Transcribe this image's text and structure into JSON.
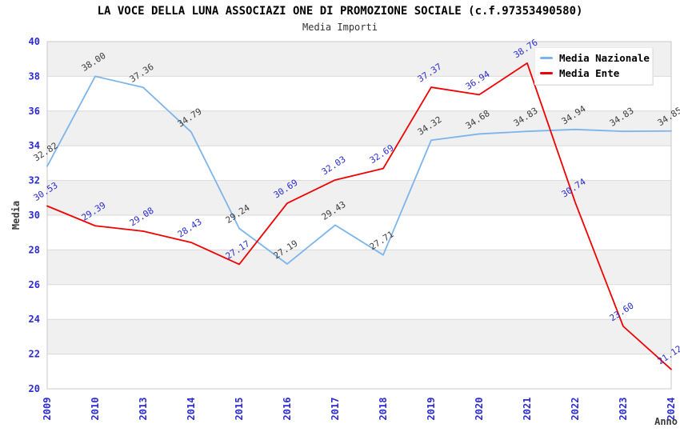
{
  "chart_data": {
    "type": "line",
    "title": "LA VOCE DELLA LUNA ASSOCIAZI ONE DI PROMOZIONE SOCIALE (c.f.97353490580)",
    "subtitle": "Media Importi",
    "xlabel": "Anno",
    "ylabel": "Media",
    "ylim": [
      20,
      40
    ],
    "yticks": [
      40,
      38,
      36,
      34,
      32,
      30,
      28,
      26,
      24,
      22,
      20
    ],
    "categories": [
      "2009",
      "2010",
      "2013",
      "2014",
      "2015",
      "2016",
      "2017",
      "2018",
      "2019",
      "2020",
      "2021",
      "2022",
      "2023",
      "2024"
    ],
    "series": [
      {
        "name": "Media Nazionale",
        "color": "#7cb5ec",
        "label_color": "#3c3c3c",
        "values": [
          32.82,
          38.0,
          37.36,
          34.79,
          29.24,
          27.19,
          29.43,
          27.71,
          34.32,
          34.68,
          34.83,
          34.94,
          34.83,
          34.85
        ]
      },
      {
        "name": "Media Ente",
        "color": "#f00000",
        "label_color": "#2b2bd0",
        "values": [
          30.53,
          29.39,
          29.08,
          28.43,
          27.17,
          30.69,
          32.03,
          32.69,
          37.37,
          36.94,
          38.76,
          30.74,
          23.6,
          21.12
        ]
      }
    ],
    "legend_position": "top-right-inside",
    "grid": "horizontal-bands",
    "band_colors": [
      "#f0f0f0",
      "#ffffff"
    ],
    "gridline_color": "#d9d9d9",
    "frame_color": "#c9c9c9",
    "tick_color": "#2b2bd0",
    "data_label_rotation_deg": -33,
    "x_tick_rotation_deg": -90
  }
}
